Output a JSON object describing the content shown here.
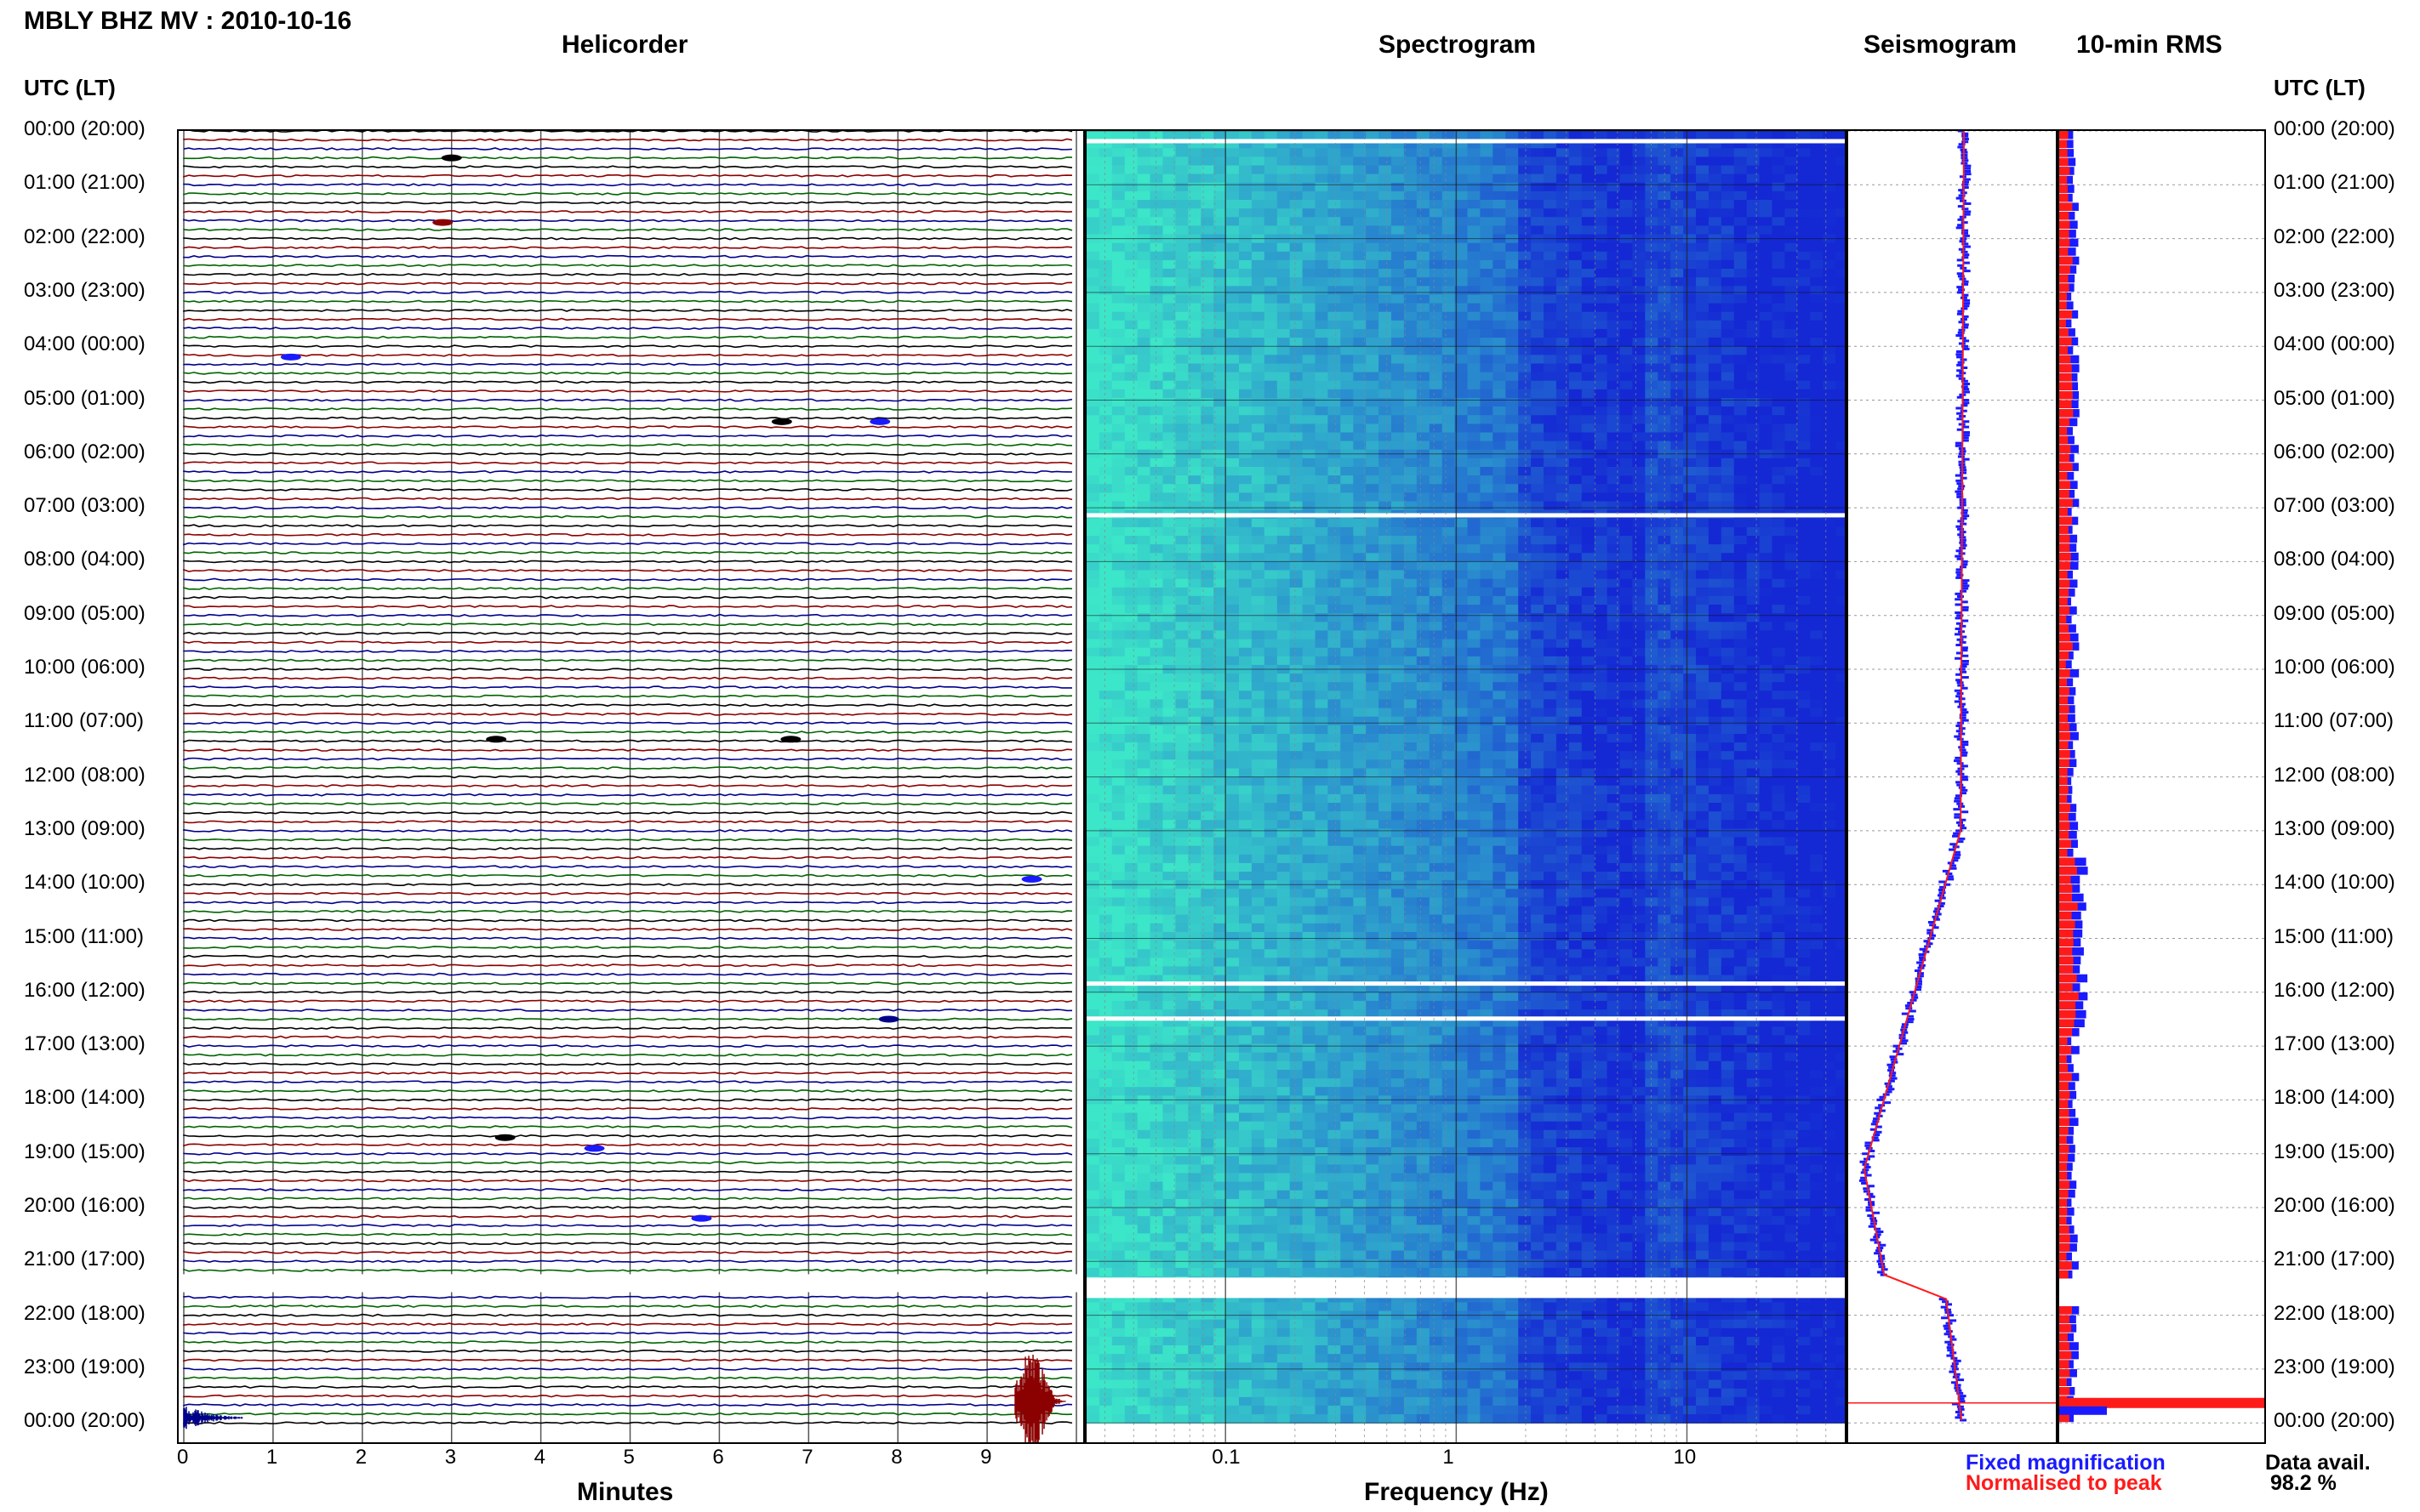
{
  "station_title": "MBLY BHZ MV : 2010-10-16",
  "panels": {
    "helicorder": "Helicorder",
    "spectrogram": "Spectrogram",
    "seismogram": "Seismogram",
    "rms": "10-min RMS"
  },
  "utc_label_left": "UTC (LT)",
  "utc_label_right": "UTC (LT)",
  "hour_labels": [
    "00:00 (20:00)",
    "01:00 (21:00)",
    "02:00 (22:00)",
    "03:00 (23:00)",
    "04:00 (00:00)",
    "05:00 (01:00)",
    "06:00 (02:00)",
    "07:00 (03:00)",
    "08:00 (04:00)",
    "09:00 (05:00)",
    "10:00 (06:00)",
    "11:00 (07:00)",
    "12:00 (08:00)",
    "13:00 (09:00)",
    "14:00 (10:00)",
    "15:00 (11:00)",
    "16:00 (12:00)",
    "17:00 (13:00)",
    "18:00 (14:00)",
    "19:00 (15:00)",
    "20:00 (16:00)",
    "21:00 (17:00)",
    "22:00 (18:00)",
    "23:00 (19:00)",
    "00:00 (20:00)"
  ],
  "minute_ticks": [
    "0",
    "1",
    "2",
    "3",
    "4",
    "5",
    "6",
    "7",
    "8",
    "9"
  ],
  "frequency_ticks": [
    "0.1",
    "1",
    "10"
  ],
  "xlabel_minutes": "Minutes",
  "xlabel_frequency": "Frequency (Hz)",
  "legend": {
    "fixed": "Fixed magnification",
    "normalised": "Normalised to peak",
    "fixed_color": "#1a1aff",
    "normalised_color": "#ff1a1a"
  },
  "data_avail_label": "Data avail.",
  "data_avail_value": "98.2 %",
  "colors": {
    "trace_cycle": [
      "#000000",
      "#8b0000",
      "#00008b",
      "#006400"
    ],
    "spectrogram_low": "#2ad9c8",
    "spectrogram_high": "#0033cc"
  },
  "chart_data": {
    "type": "heatmap",
    "title": "MBLY BHZ MV : 2010-10-16",
    "ylabel": "UTC (LT)",
    "helicorder": {
      "xlabel": "Minutes",
      "xlim": [
        0,
        10
      ],
      "lines_per_hour": 6
    },
    "spectrogram": {
      "xlabel": "Frequency (Hz)",
      "xscale": "log",
      "xlim": [
        0.025,
        50
      ]
    },
    "data_gap_utc": "21:20-21:40",
    "data_available_percent": 98.2
  }
}
